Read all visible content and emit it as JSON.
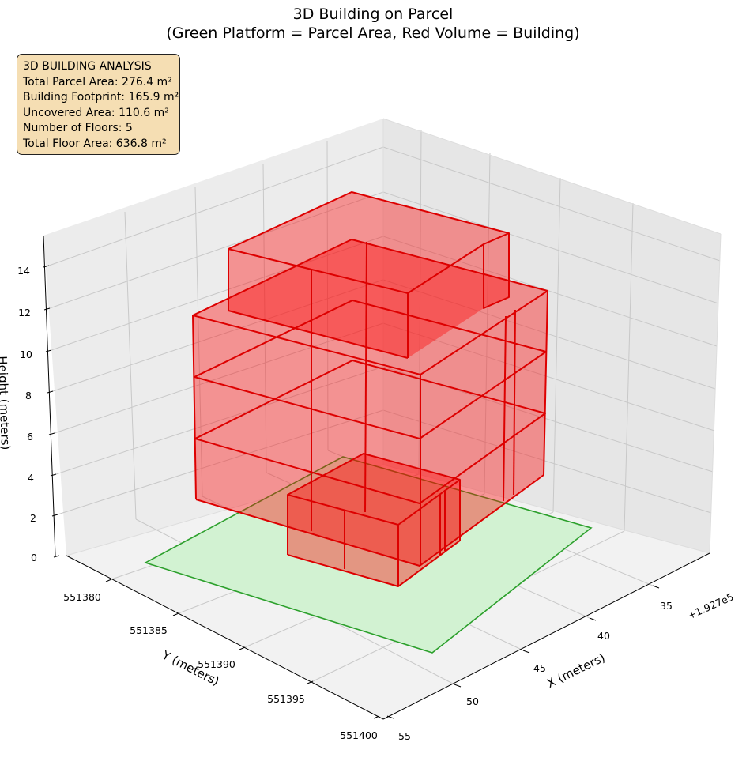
{
  "title": {
    "line1": "3D Building on Parcel",
    "line2": "(Green Platform = Parcel Area, Red Volume = Building)"
  },
  "info_box": {
    "heading": "3D BUILDING ANALYSIS",
    "lines": [
      "Total Parcel Area: 276.4 m²",
      "Building Footprint: 165.9 m²",
      "Uncovered Area: 110.6 m²",
      "Number of Floors: 5",
      "Total Floor Area: 636.8 m²"
    ]
  },
  "chart_data": {
    "type": "3d-polygon",
    "title": "3D Building on Parcel\n(Green Platform = Parcel Area, Red Volume = Building)",
    "xlabel": "X (meters)",
    "ylabel": "Y (meters)",
    "zlabel": "Height (meters)",
    "x_offset_label": "+1.927e5",
    "x_ticks": [
      "35",
      "40",
      "45",
      "50",
      "55"
    ],
    "y_ticks": [
      "551380",
      "551385",
      "551390",
      "551395",
      "551400"
    ],
    "z_ticks": [
      "0",
      "2",
      "4",
      "6",
      "8",
      "10",
      "12",
      "14"
    ],
    "parcel": {
      "name": "Parcel Area",
      "color": "#2ca02c",
      "fill": "#d2f2d2"
    },
    "building": {
      "name": "Building",
      "color": "#dd0000",
      "fill": "#ff0000"
    }
  }
}
